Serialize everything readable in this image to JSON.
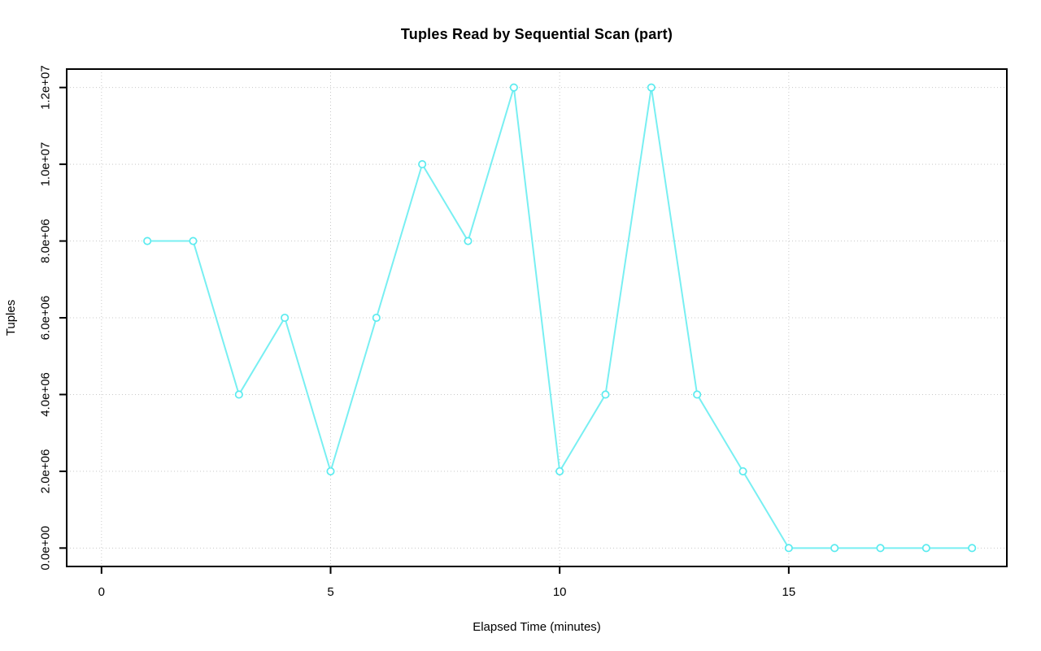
{
  "page": {
    "background": "#FFFFFF"
  },
  "chart_data": {
    "type": "line",
    "title": "Tuples Read by Sequential Scan (part)",
    "xlabel": "Elapsed Time (minutes)",
    "ylabel": "Tuples",
    "series": [
      {
        "name": "part",
        "x": [
          1,
          2,
          3,
          4,
          5,
          6,
          7,
          8,
          9,
          10,
          11,
          12,
          13,
          14,
          15,
          16,
          17,
          18,
          19
        ],
        "y": [
          8000000,
          8000000,
          4000000,
          6000000,
          2000000,
          6000000,
          10000000,
          8000000,
          12000000,
          2000000,
          4000000,
          12000000,
          4000000,
          2000000,
          0,
          0,
          0,
          0,
          0
        ]
      }
    ],
    "marker": "open-circle",
    "line_style": "solid",
    "legend": "none",
    "grid": {
      "show": true,
      "style": "dotted",
      "color": "#C8C8C8"
    },
    "x_ticks": {
      "values": [
        0,
        5,
        10,
        15
      ],
      "labels": [
        "0",
        "5",
        "10",
        "15"
      ]
    },
    "y_ticks": {
      "values": [
        0,
        2000000,
        4000000,
        6000000,
        8000000,
        10000000,
        12000000
      ],
      "labels": [
        "0.0e+00",
        "2.0e+06",
        "4.0e+06",
        "6.0e+06",
        "8.0e+06",
        "1.0e+07",
        "1.2e+07"
      ]
    },
    "xlim": [
      -0.76,
      19.76
    ],
    "ylim": [
      -480000,
      12480000
    ],
    "colors": {
      "line": "#78EFF2",
      "marker_stroke": "#5BEBEF",
      "marker_fill": "#FFFFFF",
      "axis": "#000000",
      "text": "#000000"
    }
  }
}
